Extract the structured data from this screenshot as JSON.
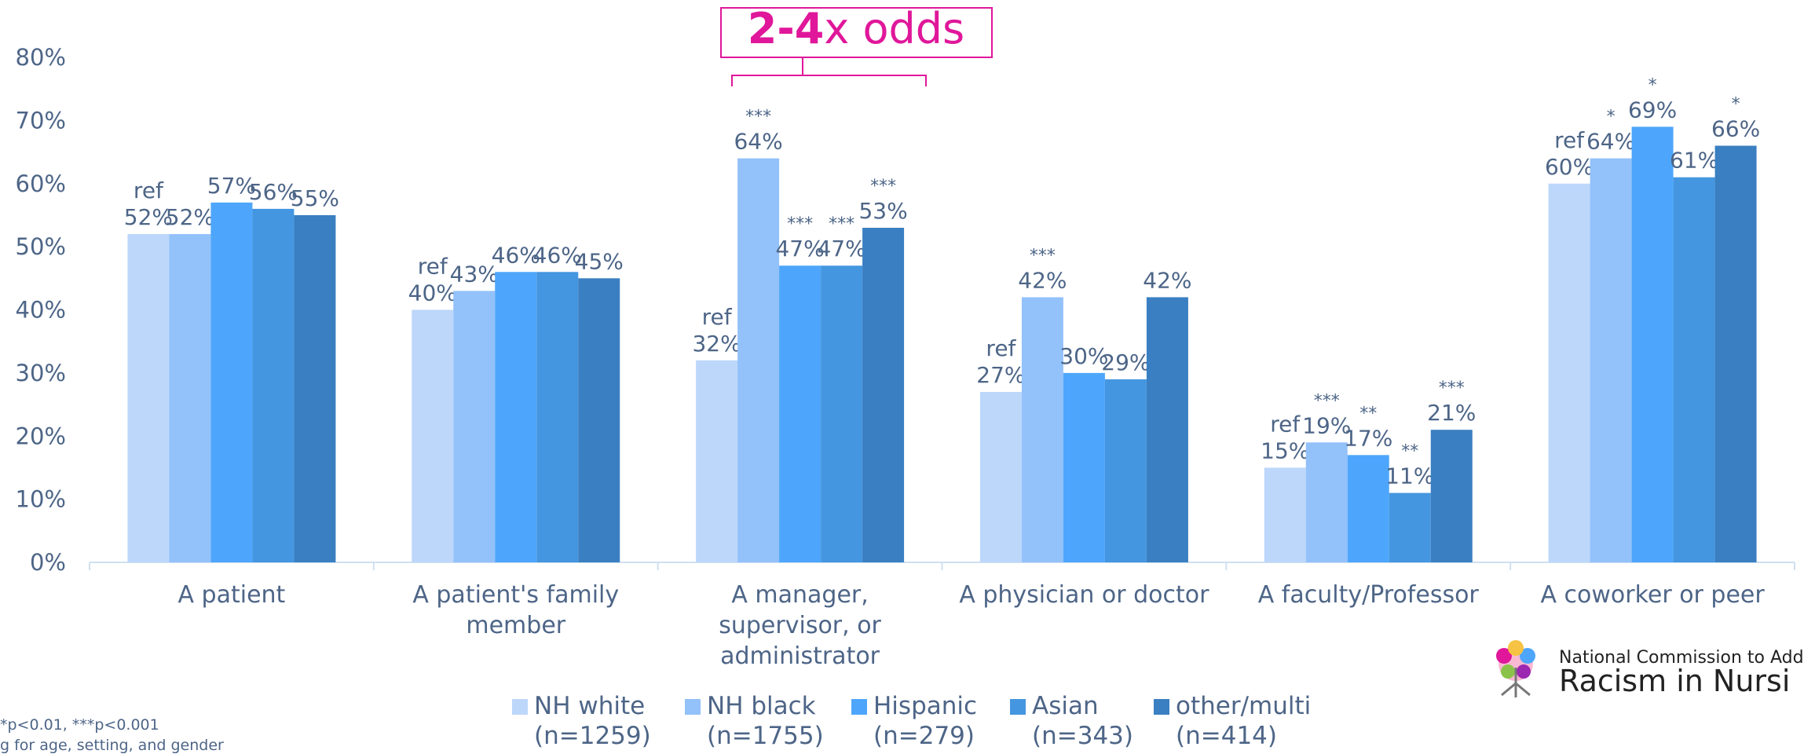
{
  "chart_data": {
    "type": "bar",
    "categories": [
      "A patient",
      "A patient's family member",
      "A manager, supervisor, or administrator",
      "A physician or doctor",
      "A faculty/Professor",
      "A coworker or peer"
    ],
    "series": [
      {
        "name": "NH white",
        "n_label": "(n=1259)",
        "color": "#bdd7fb",
        "values": [
          52,
          40,
          32,
          27,
          15,
          60
        ],
        "value_labels": [
          "52%",
          "40%",
          "32%",
          "27%",
          "15%",
          "60%"
        ],
        "markers": [
          "ref",
          "ref",
          "ref",
          "ref",
          "ref",
          "ref"
        ]
      },
      {
        "name": "NH black",
        "n_label": "(n=1755)",
        "color": "#93c1fa",
        "values": [
          52,
          43,
          64,
          42,
          19,
          64
        ],
        "value_labels": [
          "52%",
          "43%",
          "64%",
          "42%",
          "19%",
          "64%"
        ],
        "markers": [
          null,
          null,
          "***",
          "***",
          "***",
          "*"
        ]
      },
      {
        "name": "Hispanic",
        "n_label": "(n=279)",
        "color": "#4da6fb",
        "values": [
          57,
          46,
          47,
          30,
          17,
          69
        ],
        "value_labels": [
          "57%",
          "46%",
          "47%",
          "30%",
          "17%",
          "69%"
        ],
        "markers": [
          null,
          null,
          "***",
          null,
          "**",
          "*"
        ]
      },
      {
        "name": "Asian",
        "n_label": "(n=343)",
        "color": "#4596e0",
        "values": [
          56,
          46,
          47,
          29,
          11,
          61
        ],
        "value_labels": [
          "56%",
          "46%",
          "47%",
          "29%",
          "11%",
          "61%"
        ],
        "markers": [
          null,
          null,
          "***",
          null,
          "**",
          null
        ]
      },
      {
        "name": "other/multi",
        "n_label": "(n=414)",
        "color": "#3a7fc1",
        "values": [
          55,
          45,
          53,
          42,
          21,
          66
        ],
        "value_labels": [
          "55%",
          "45%",
          "53%",
          "42%",
          "21%",
          "66%"
        ],
        "markers": [
          null,
          null,
          "***",
          null,
          "***",
          "*"
        ]
      }
    ],
    "ylim": [
      0,
      80
    ],
    "yticks": [
      {
        "value": 0,
        "label": "0%"
      },
      {
        "value": 10,
        "label": "10%"
      },
      {
        "value": 20,
        "label": "20%"
      },
      {
        "value": 30,
        "label": "30%"
      },
      {
        "value": 40,
        "label": "40%"
      },
      {
        "value": 50,
        "label": "50%"
      },
      {
        "value": 60,
        "label": "60%"
      },
      {
        "value": 70,
        "label": "70%"
      },
      {
        "value": 80,
        "label": "80%"
      }
    ],
    "grid": false,
    "annotation": {
      "emphasis": "2-4",
      "text": "x odds"
    }
  },
  "footnotes": [
    "*p<0.01, ***p<0.001",
    "g for age, setting, and gender"
  ],
  "logo": {
    "line1": "National Commission to Add",
    "line2": "Racism in Nursi"
  }
}
